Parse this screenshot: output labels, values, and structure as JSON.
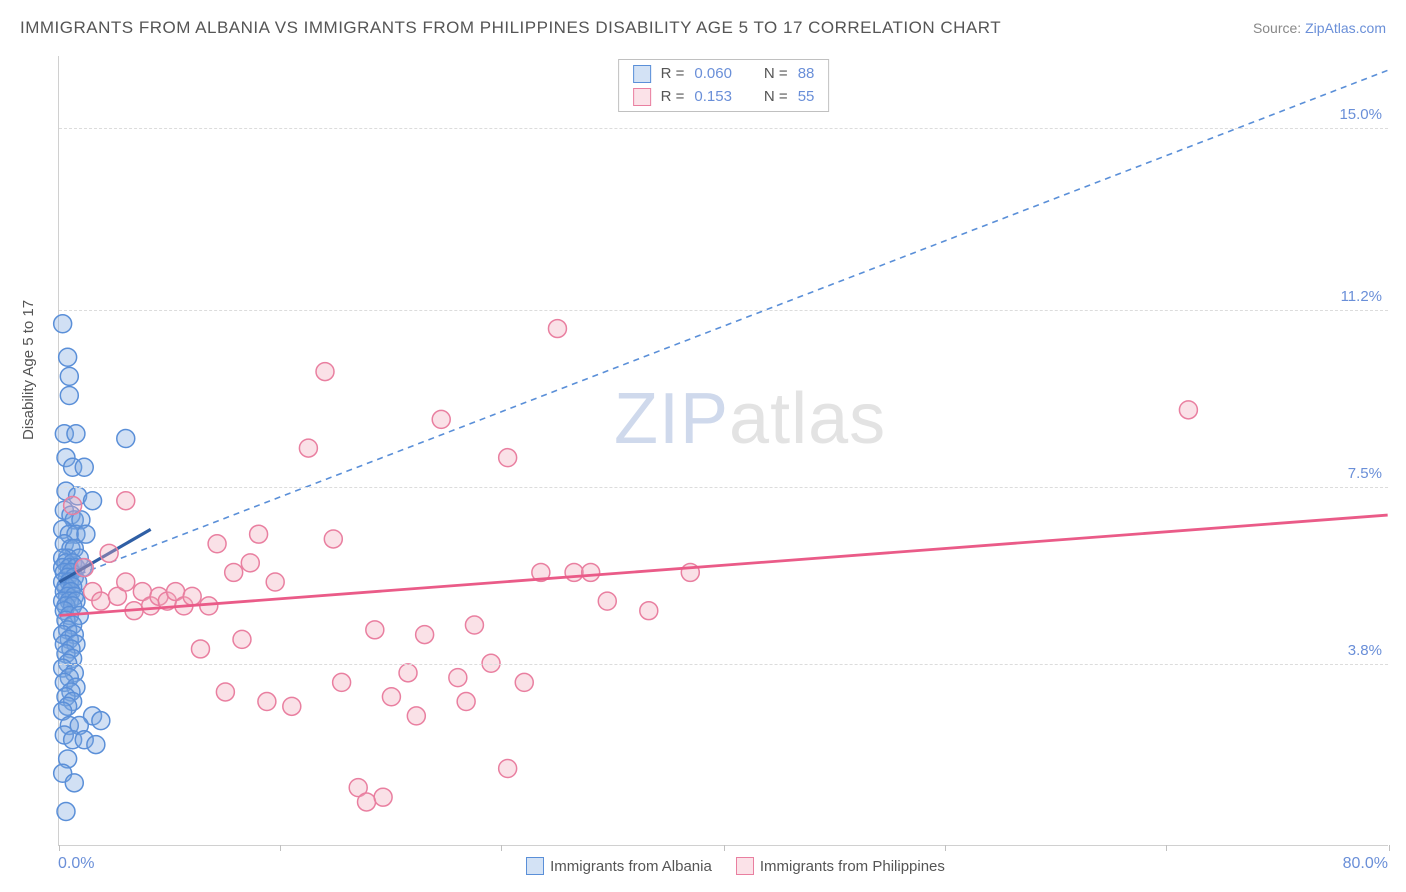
{
  "title": "IMMIGRANTS FROM ALBANIA VS IMMIGRANTS FROM PHILIPPINES DISABILITY AGE 5 TO 17 CORRELATION CHART",
  "source_prefix": "Source: ",
  "source_link": "ZipAtlas.com",
  "y_axis_label": "Disability Age 5 to 17",
  "watermark_a": "ZIP",
  "watermark_b": "atlas",
  "chart": {
    "type": "scatter",
    "background_color": "#ffffff",
    "grid_color": "#dcdcdc",
    "axis_color": "#d0d0d0",
    "tick_label_color": "#6a8fd8",
    "xlim": [
      0,
      80
    ],
    "ylim": [
      0,
      16.5
    ],
    "x_min_label": "0.0%",
    "x_max_label": "80.0%",
    "x_tick_positions": [
      0,
      13.3,
      26.6,
      40,
      53.3,
      66.6,
      80
    ],
    "y_grid": [
      {
        "value": 3.8,
        "label": "3.8%"
      },
      {
        "value": 7.5,
        "label": "7.5%"
      },
      {
        "value": 11.2,
        "label": "11.2%"
      },
      {
        "value": 15.0,
        "label": "15.0%"
      }
    ],
    "marker_radius": 9,
    "marker_stroke_width": 1.5,
    "marker_fill_opacity": 0.35,
    "series": [
      {
        "name": "Immigrants from Albania",
        "color": "#7aa7e0",
        "stroke": "#5a8fd8",
        "r_stat": "0.060",
        "n_stat": "88",
        "trend": {
          "x1": 0,
          "y1": 5.5,
          "x2": 80,
          "y2": 16.2,
          "dash": "6,5",
          "width": 1.6,
          "color": "#5a8fd8"
        },
        "short_trend": {
          "x1": 0,
          "y1": 5.5,
          "x2": 5.5,
          "y2": 6.6,
          "width": 3.2,
          "color": "#2f5fa5"
        },
        "points": [
          [
            0.2,
            10.9
          ],
          [
            0.5,
            10.2
          ],
          [
            0.6,
            9.8
          ],
          [
            0.6,
            9.4
          ],
          [
            0.3,
            8.6
          ],
          [
            1.0,
            8.6
          ],
          [
            4.0,
            8.5
          ],
          [
            0.4,
            8.1
          ],
          [
            0.8,
            7.9
          ],
          [
            1.5,
            7.9
          ],
          [
            0.4,
            7.4
          ],
          [
            1.1,
            7.3
          ],
          [
            2.0,
            7.2
          ],
          [
            0.3,
            7.0
          ],
          [
            0.7,
            6.9
          ],
          [
            0.9,
            6.8
          ],
          [
            1.3,
            6.8
          ],
          [
            0.2,
            6.6
          ],
          [
            0.6,
            6.5
          ],
          [
            1.0,
            6.5
          ],
          [
            1.6,
            6.5
          ],
          [
            0.3,
            6.3
          ],
          [
            0.7,
            6.2
          ],
          [
            0.9,
            6.2
          ],
          [
            0.5,
            6.0
          ],
          [
            0.2,
            6.0
          ],
          [
            1.2,
            6.0
          ],
          [
            0.4,
            5.9
          ],
          [
            0.8,
            5.9
          ],
          [
            0.2,
            5.8
          ],
          [
            0.6,
            5.8
          ],
          [
            1.0,
            5.8
          ],
          [
            1.4,
            5.8
          ],
          [
            0.3,
            5.7
          ],
          [
            0.7,
            5.7
          ],
          [
            0.5,
            5.6
          ],
          [
            0.9,
            5.6
          ],
          [
            0.2,
            5.5
          ],
          [
            0.6,
            5.5
          ],
          [
            1.1,
            5.5
          ],
          [
            0.4,
            5.4
          ],
          [
            0.8,
            5.4
          ],
          [
            0.3,
            5.3
          ],
          [
            0.7,
            5.3
          ],
          [
            0.5,
            5.2
          ],
          [
            0.9,
            5.2
          ],
          [
            0.2,
            5.1
          ],
          [
            0.6,
            5.1
          ],
          [
            1.0,
            5.1
          ],
          [
            0.4,
            5.0
          ],
          [
            0.8,
            5.0
          ],
          [
            0.3,
            4.9
          ],
          [
            0.6,
            4.8
          ],
          [
            1.2,
            4.8
          ],
          [
            0.4,
            4.7
          ],
          [
            0.8,
            4.6
          ],
          [
            0.5,
            4.5
          ],
          [
            0.2,
            4.4
          ],
          [
            0.9,
            4.4
          ],
          [
            0.6,
            4.3
          ],
          [
            0.3,
            4.2
          ],
          [
            1.0,
            4.2
          ],
          [
            0.7,
            4.1
          ],
          [
            0.4,
            4.0
          ],
          [
            0.8,
            3.9
          ],
          [
            0.5,
            3.8
          ],
          [
            0.2,
            3.7
          ],
          [
            0.9,
            3.6
          ],
          [
            0.6,
            3.5
          ],
          [
            0.3,
            3.4
          ],
          [
            1.0,
            3.3
          ],
          [
            0.7,
            3.2
          ],
          [
            0.4,
            3.1
          ],
          [
            0.8,
            3.0
          ],
          [
            0.5,
            2.9
          ],
          [
            0.2,
            2.8
          ],
          [
            2.0,
            2.7
          ],
          [
            2.5,
            2.6
          ],
          [
            0.6,
            2.5
          ],
          [
            1.2,
            2.5
          ],
          [
            0.3,
            2.3
          ],
          [
            0.8,
            2.2
          ],
          [
            1.5,
            2.2
          ],
          [
            2.2,
            2.1
          ],
          [
            0.5,
            1.8
          ],
          [
            0.2,
            1.5
          ],
          [
            0.9,
            1.3
          ],
          [
            0.4,
            0.7
          ]
        ]
      },
      {
        "name": "Immigrants from Philippines",
        "color": "#f2a8bb",
        "stroke": "#e97fa0",
        "r_stat": "0.153",
        "n_stat": "55",
        "trend": {
          "x1": 0,
          "y1": 4.8,
          "x2": 80,
          "y2": 6.9,
          "dash": "none",
          "width": 2.8,
          "color": "#ea5b88"
        },
        "points": [
          [
            0.8,
            7.1
          ],
          [
            1.5,
            5.8
          ],
          [
            2.0,
            5.3
          ],
          [
            2.5,
            5.1
          ],
          [
            3.0,
            6.1
          ],
          [
            3.5,
            5.2
          ],
          [
            4.0,
            5.5
          ],
          [
            4.5,
            4.9
          ],
          [
            5.0,
            5.3
          ],
          [
            5.5,
            5.0
          ],
          [
            6.0,
            5.2
          ],
          [
            6.5,
            5.1
          ],
          [
            7.0,
            5.3
          ],
          [
            7.5,
            5.0
          ],
          [
            8.0,
            5.2
          ],
          [
            8.5,
            4.1
          ],
          [
            9.0,
            5.0
          ],
          [
            9.5,
            6.3
          ],
          [
            10.0,
            3.2
          ],
          [
            10.5,
            5.7
          ],
          [
            11.0,
            4.3
          ],
          [
            11.5,
            5.9
          ],
          [
            12.0,
            6.5
          ],
          [
            12.5,
            3.0
          ],
          [
            13.0,
            5.5
          ],
          [
            14.0,
            2.9
          ],
          [
            15.0,
            8.3
          ],
          [
            16.0,
            9.9
          ],
          [
            17.0,
            3.4
          ],
          [
            18.0,
            1.2
          ],
          [
            18.5,
            0.9
          ],
          [
            19.0,
            4.5
          ],
          [
            20.0,
            3.1
          ],
          [
            21.0,
            3.6
          ],
          [
            22.0,
            4.4
          ],
          [
            23.0,
            8.9
          ],
          [
            24.0,
            3.5
          ],
          [
            25.0,
            4.6
          ],
          [
            26.0,
            3.8
          ],
          [
            27.0,
            8.1
          ],
          [
            27.0,
            1.6
          ],
          [
            28.0,
            3.4
          ],
          [
            29.0,
            5.7
          ],
          [
            30.0,
            10.8
          ],
          [
            31.0,
            5.7
          ],
          [
            32.0,
            5.7
          ],
          [
            33.0,
            5.1
          ],
          [
            35.5,
            4.9
          ],
          [
            38.0,
            5.7
          ],
          [
            68.0,
            9.1
          ],
          [
            4.0,
            7.2
          ],
          [
            16.5,
            6.4
          ],
          [
            21.5,
            2.7
          ],
          [
            24.5,
            3.0
          ],
          [
            19.5,
            1.0
          ]
        ]
      }
    ],
    "legend_labels": {
      "r_prefix": "R =",
      "n_prefix": "N ="
    }
  }
}
